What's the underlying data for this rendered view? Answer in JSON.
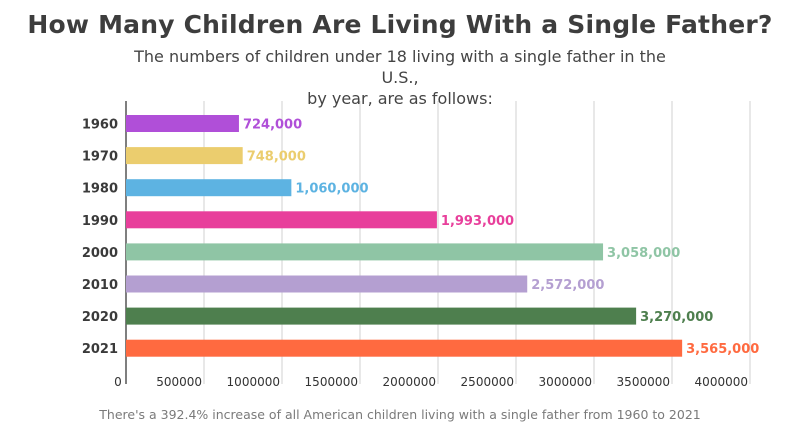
{
  "header": {
    "title": "How Many Children Are Living With a Single Father?",
    "subtitle_line1": "The numbers of children under 18 living with a single father in the U.S.,",
    "subtitle_line2": "by year, are as follows:"
  },
  "footnote": "There's a 392.4% increase of all American children living with a single father from 1960 to 2021",
  "chart_data": {
    "type": "bar",
    "orientation": "horizontal",
    "categories": [
      "1960",
      "1970",
      "1980",
      "1990",
      "2000",
      "2010",
      "2020",
      "2021"
    ],
    "values": [
      724000,
      748000,
      1060000,
      1993000,
      3058000,
      2572000,
      3270000,
      3565000
    ],
    "value_labels": [
      "724,000",
      "748,000",
      "1,060,000",
      "1,993,000",
      "3,058,000",
      "2,572,000",
      "3,270,000",
      "3,565,000"
    ],
    "colors": [
      "#b04fd8",
      "#ebcd6e",
      "#5db3e2",
      "#e83f9b",
      "#8fc5a5",
      "#b49fd1",
      "#4e7f4e",
      "#ff6a40"
    ],
    "x_ticks": [
      0,
      500000,
      1000000,
      1500000,
      2000000,
      2500000,
      3000000,
      3500000,
      4000000
    ],
    "x_tick_labels": [
      "0",
      "500000",
      "1000000",
      "1500000",
      "2000000",
      "2500000",
      "3000000",
      "3500000",
      "4000000"
    ],
    "xlim": [
      0,
      4000000
    ],
    "grid": "vertical",
    "legend": "none"
  }
}
